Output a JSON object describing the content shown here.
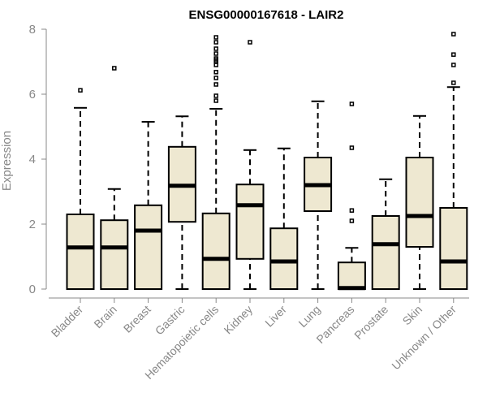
{
  "chart_data": {
    "type": "boxplot",
    "title": "ENSG00000167618 - LAIR2",
    "xlabel": "",
    "ylabel": "Expression",
    "ylim": [
      0,
      8
    ],
    "yticks": [
      0,
      2,
      4,
      6,
      8
    ],
    "grid": false,
    "colors": {
      "box_fill": "#EEE8D1",
      "stroke": "#000000",
      "axis": "#888888"
    },
    "categories": [
      "Bladder",
      "Brain",
      "Breast",
      "Gastric",
      "Hematopoietic cells",
      "Kidney",
      "Liver",
      "Lung",
      "Pancreas",
      "Prostate",
      "Skin",
      "Unknown / Other"
    ],
    "boxes": [
      {
        "whisker_low": 0,
        "q1": 0,
        "median": 1.28,
        "q3": 2.3,
        "whisker_high": 5.58,
        "outliers": [
          6.12
        ]
      },
      {
        "whisker_low": 0,
        "q1": 0,
        "median": 1.28,
        "q3": 2.12,
        "whisker_high": 3.08,
        "outliers": [
          6.8
        ]
      },
      {
        "whisker_low": 0,
        "q1": 0,
        "median": 1.8,
        "q3": 2.58,
        "whisker_high": 5.15,
        "outliers": []
      },
      {
        "whisker_low": 0,
        "q1": 2.07,
        "median": 3.18,
        "q3": 4.38,
        "whisker_high": 5.32,
        "outliers": []
      },
      {
        "whisker_low": 0,
        "q1": 0,
        "median": 0.93,
        "q3": 2.33,
        "whisker_high": 5.55,
        "outliers": [
          5.8,
          5.95,
          6.3,
          6.5,
          6.68,
          6.9,
          7.0,
          7.05,
          7.1,
          7.25,
          7.4,
          7.6,
          7.75
        ]
      },
      {
        "whisker_low": 0,
        "q1": 0.93,
        "median": 2.58,
        "q3": 3.22,
        "whisker_high": 4.28,
        "outliers": [
          7.6
        ]
      },
      {
        "whisker_low": 0,
        "q1": 0,
        "median": 0.85,
        "q3": 1.87,
        "whisker_high": 4.33,
        "outliers": []
      },
      {
        "whisker_low": 0,
        "q1": 2.4,
        "median": 3.2,
        "q3": 4.05,
        "whisker_high": 5.78,
        "outliers": []
      },
      {
        "whisker_low": 0,
        "q1": 0,
        "median": 0.03,
        "q3": 0.82,
        "whisker_high": 1.27,
        "outliers": [
          2.1,
          2.42,
          4.35,
          5.7
        ]
      },
      {
        "whisker_low": 0,
        "q1": 0,
        "median": 1.38,
        "q3": 2.25,
        "whisker_high": 3.38,
        "outliers": []
      },
      {
        "whisker_low": 0,
        "q1": 1.3,
        "median": 2.25,
        "q3": 4.05,
        "whisker_high": 5.33,
        "outliers": []
      },
      {
        "whisker_low": 0,
        "q1": 0,
        "median": 0.85,
        "q3": 2.5,
        "whisker_high": 6.22,
        "outliers": [
          6.35,
          6.9,
          7.22,
          7.85
        ]
      }
    ]
  }
}
